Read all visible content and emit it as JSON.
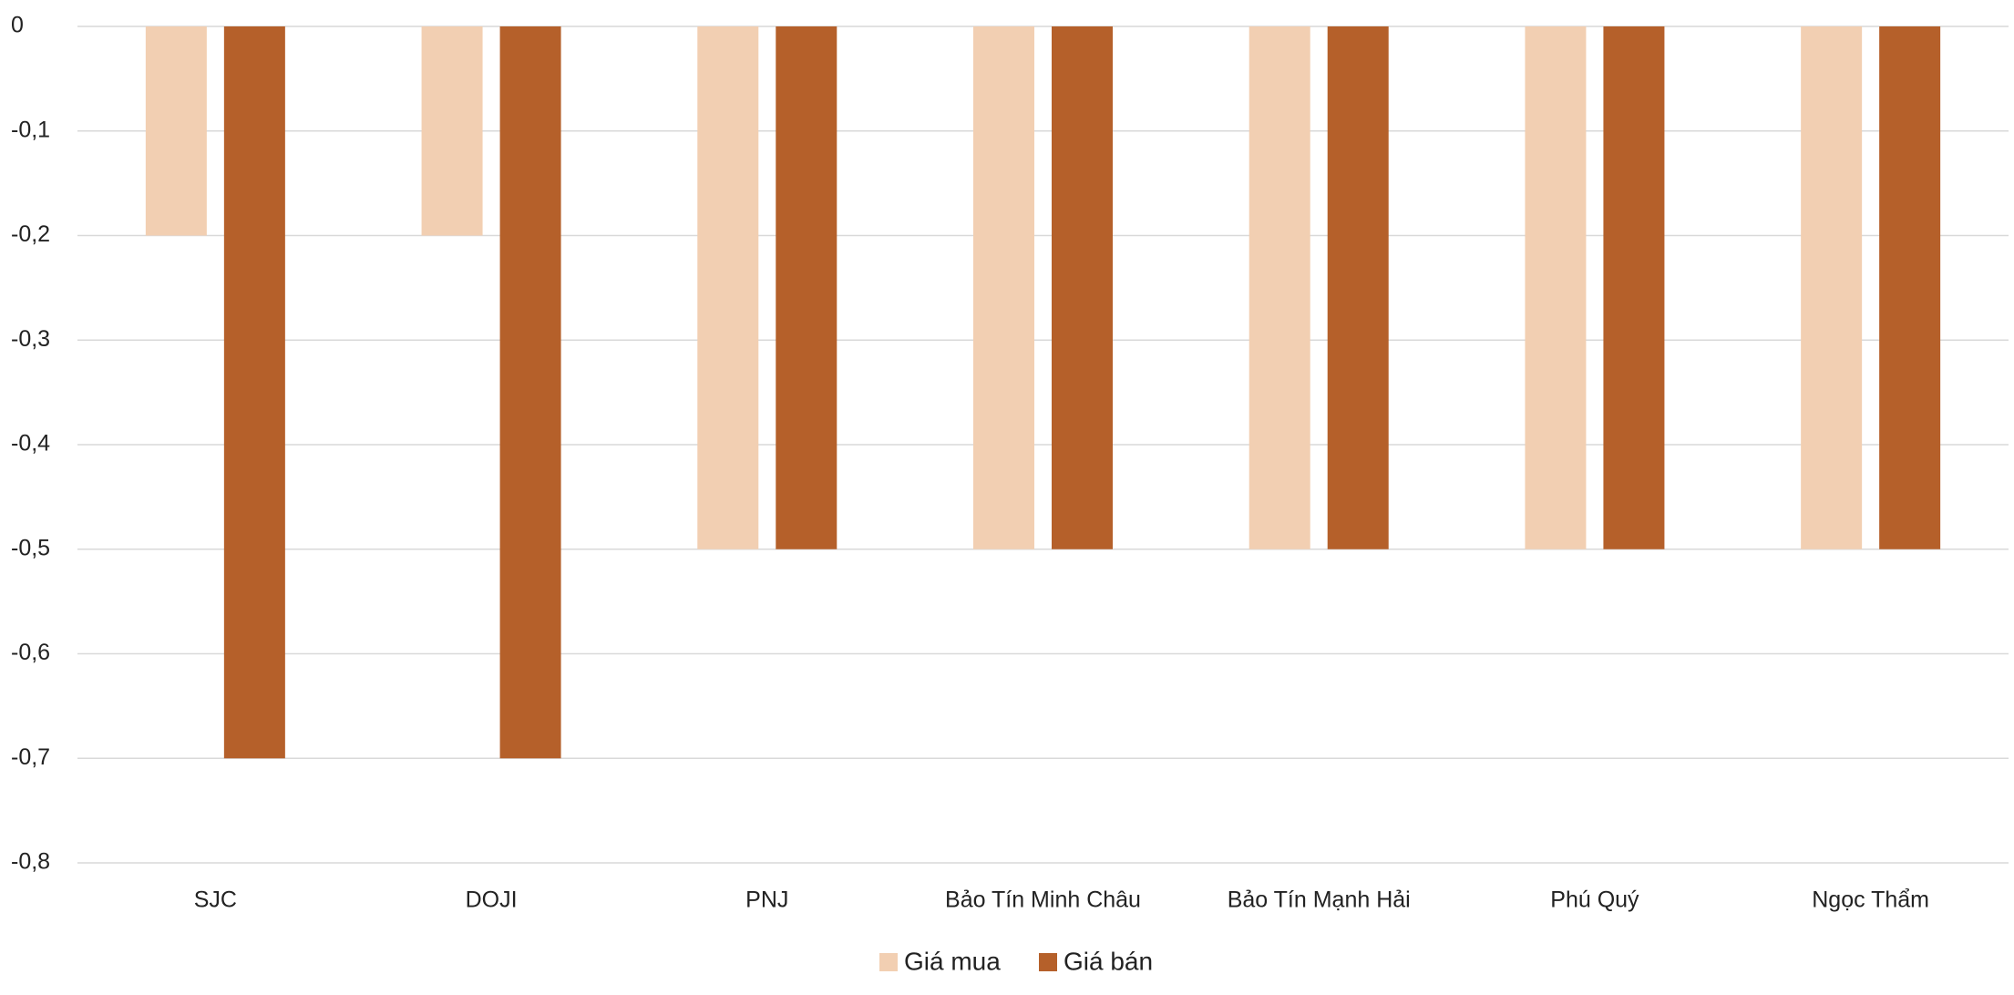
{
  "chart_data": {
    "type": "bar",
    "categories": [
      "SJC",
      "DOJI",
      "PNJ",
      "Bảo Tín Minh Châu",
      "Bảo Tín Mạnh Hải",
      "Phú Quý",
      "Ngọc Thẩm"
    ],
    "series": [
      {
        "name": "Giá mua",
        "color": "#f2cfb2",
        "values": [
          -0.2,
          -0.2,
          -0.5,
          -0.5,
          -0.5,
          -0.5,
          -0.5
        ]
      },
      {
        "name": "Giá bán",
        "color": "#b5602a",
        "values": [
          -0.7,
          -0.7,
          -0.5,
          -0.5,
          -0.5,
          -0.5,
          -0.5
        ]
      }
    ],
    "ylim": [
      -0.8,
      0
    ],
    "yticks": [
      0,
      {
        "value": -0.1,
        "label": "-0,1"
      },
      {
        "value": -0.2,
        "label": "-0,2"
      },
      {
        "value": -0.3,
        "label": "-0,3"
      },
      {
        "value": -0.4,
        "label": "-0,4"
      },
      {
        "value": -0.5,
        "label": "-0,5"
      },
      {
        "value": -0.6,
        "label": "-0,6"
      },
      {
        "value": -0.7,
        "label": "-0,7"
      },
      {
        "value": -0.8,
        "label": "-0,8"
      }
    ],
    "grid": true,
    "legend": "bottom"
  }
}
